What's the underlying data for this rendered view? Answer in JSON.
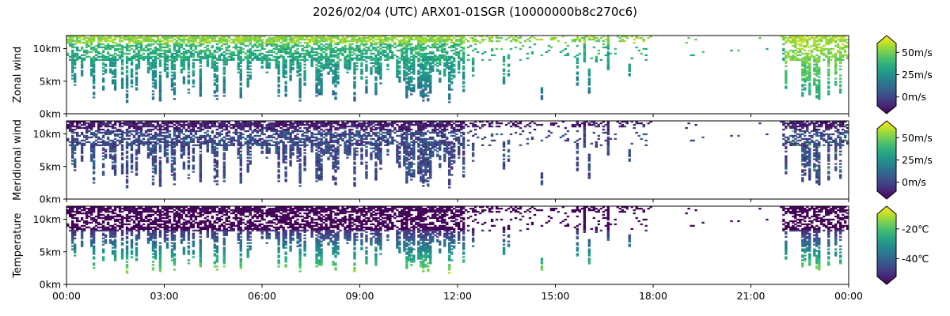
{
  "title": "2026/02/04 (UTC) ARX01-01SGR (10000000b8c270c6)",
  "chart_data": [
    {
      "type": "heatmap",
      "ylabel": "Zonal wind",
      "y_ticks": [
        "0km",
        "5km",
        "10km"
      ],
      "y_tick_values": [
        0,
        5,
        10
      ],
      "ylim": [
        0,
        12
      ],
      "colorbar_ticks": [
        "0m/s",
        "25m/s",
        "50m/s"
      ],
      "colorbar_tick_values": [
        0,
        25,
        50
      ],
      "colorbar_range": [
        -10,
        60
      ],
      "colormap": "viridis"
    },
    {
      "type": "heatmap",
      "ylabel": "Meridional wind",
      "y_ticks": [
        "0km",
        "5km",
        "10km"
      ],
      "y_tick_values": [
        0,
        5,
        10
      ],
      "ylim": [
        0,
        12
      ],
      "colorbar_ticks": [
        "0m/s",
        "25m/s",
        "50m/s"
      ],
      "colorbar_tick_values": [
        0,
        25,
        50
      ],
      "colorbar_range": [
        -10,
        60
      ],
      "colormap": "viridis"
    },
    {
      "type": "heatmap",
      "ylabel": "Temperature",
      "y_ticks": [
        "0km",
        "5km",
        "10km"
      ],
      "y_tick_values": [
        0,
        5,
        10
      ],
      "ylim": [
        0,
        12
      ],
      "colorbar_ticks": [
        "-40℃",
        "-20℃"
      ],
      "colorbar_tick_values": [
        -40,
        -20
      ],
      "colorbar_range": [
        -52,
        -10
      ],
      "colormap": "viridis"
    }
  ],
  "x_ticks": [
    "00:00",
    "03:00",
    "06:00",
    "09:00",
    "12:00",
    "15:00",
    "18:00",
    "21:00",
    "00:00"
  ],
  "x_tick_hours": [
    0,
    3,
    6,
    9,
    12,
    15,
    18,
    21,
    24
  ],
  "xlim_hours": [
    0,
    24
  ]
}
